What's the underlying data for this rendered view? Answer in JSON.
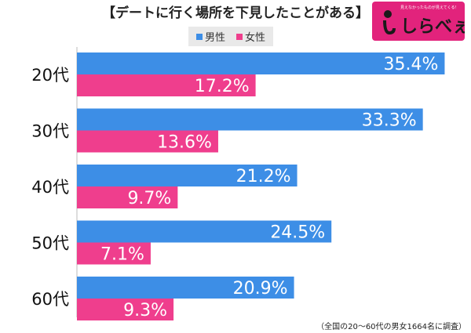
{
  "header": {
    "title": "【デート に行く場所を下見したことがある】"
  },
  "logo": {
    "tagline": "見えなかったものが見えてくる！",
    "name": "しらべぇ"
  },
  "footnote": "（全国の20～60代の男女1664名に調査）",
  "colors": {
    "male": "#3d8ee6",
    "female": "#ef3e8d"
  },
  "chart_data": {
    "type": "bar",
    "orientation": "horizontal",
    "title": "【デートに行く場所を下見したことがある】",
    "categories": [
      "20代",
      "30代",
      "40代",
      "50代",
      "60代"
    ],
    "series": [
      {
        "name": "男性",
        "values": [
          35.4,
          33.3,
          21.2,
          24.5,
          20.9
        ],
        "labels": [
          "35.4%",
          "33.3%",
          "21.2%",
          "24.5%",
          "20.9%"
        ]
      },
      {
        "name": "女性",
        "values": [
          17.2,
          13.6,
          9.7,
          7.1,
          9.3
        ],
        "labels": [
          "17.2%",
          "13.6%",
          "9.7%",
          "7.1%",
          "9.3%"
        ]
      }
    ],
    "xlim": [
      0,
      36.5
    ],
    "legend": "top-center",
    "grid": false
  }
}
